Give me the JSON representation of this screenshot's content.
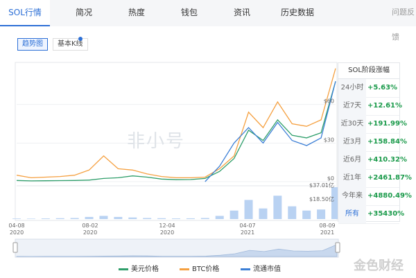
{
  "tabs": [
    {
      "label": "SOL行情",
      "active": true
    },
    {
      "label": "简况"
    },
    {
      "label": "热度"
    },
    {
      "label": "钱包"
    },
    {
      "label": "资讯"
    },
    {
      "label": "历史数据"
    }
  ],
  "feedback": "问题反馈",
  "toggles": {
    "trend": "趋势图",
    "kline": "基本K线"
  },
  "watermark": "非小号",
  "brand": "金色财经",
  "side_panel": {
    "title": "SOL阶段涨幅",
    "rows": [
      {
        "period": "24小时",
        "change": "+5.63%"
      },
      {
        "period": "近7天",
        "change": "+12.61%"
      },
      {
        "period": "近30天",
        "change": "+191.99%"
      },
      {
        "period": "近3月",
        "change": "+158.84%"
      },
      {
        "period": "近6月",
        "change": "+410.32%"
      },
      {
        "period": "近1年",
        "change": "+2461.87%"
      },
      {
        "period": "今年来",
        "change": "+4880.49%"
      },
      {
        "period": "所有",
        "change": "+35430%"
      }
    ]
  },
  "legend": [
    {
      "label": "美元价格",
      "color": "#2e9e6a"
    },
    {
      "label": "BTC价格",
      "color": "#f5a040"
    },
    {
      "label": "流通市值",
      "color": "#3c7fd6"
    }
  ],
  "chart_data": {
    "type": "line",
    "x_ticks": [
      {
        "line1": "04-08",
        "line2": "2020"
      },
      {
        "line1": "08-02",
        "line2": "2020"
      },
      {
        "line1": "12-04",
        "line2": "2020"
      },
      {
        "line1": "04-07",
        "line2": "2021"
      },
      {
        "line1": "08-09",
        "line2": "2021"
      }
    ],
    "price_axis": {
      "ticks": [
        "$60",
        "$30",
        "$0"
      ],
      "ylim": [
        0,
        90
      ]
    },
    "volume_axis": {
      "ticks": [
        "$37.01亿",
        "$18.50亿"
      ]
    },
    "series": [
      {
        "name": "美元价格",
        "color": "#2e9e6a",
        "values": [
          0.9,
          0.6,
          0.7,
          0.8,
          0.9,
          1.2,
          2.5,
          3.0,
          4.5,
          3.5,
          2.0,
          1.5,
          1.6,
          2.5,
          8,
          18,
          40,
          32,
          48,
          36,
          34,
          38,
          78
        ]
      },
      {
        "name": "BTC价格",
        "color": "#f5a040",
        "values": [
          5,
          3,
          3.5,
          4,
          5,
          9,
          20,
          10,
          9,
          6,
          4,
          3,
          3,
          3.5,
          10,
          20,
          54,
          42,
          62,
          45,
          43,
          48,
          88
        ]
      },
      {
        "name": "流通市值",
        "color": "#3c7fd6",
        "values": [
          null,
          null,
          null,
          null,
          null,
          null,
          null,
          null,
          null,
          null,
          null,
          null,
          null,
          0,
          12,
          30,
          42,
          30,
          46,
          32,
          28,
          34,
          78
        ]
      }
    ],
    "volume": [
      0.5,
      0.4,
      0.6,
      0.8,
      1,
      2,
      3,
      2,
      1.5,
      1,
      0.8,
      0.6,
      0.7,
      1,
      3,
      8,
      18,
      10,
      22,
      12,
      8,
      9,
      30
    ]
  }
}
